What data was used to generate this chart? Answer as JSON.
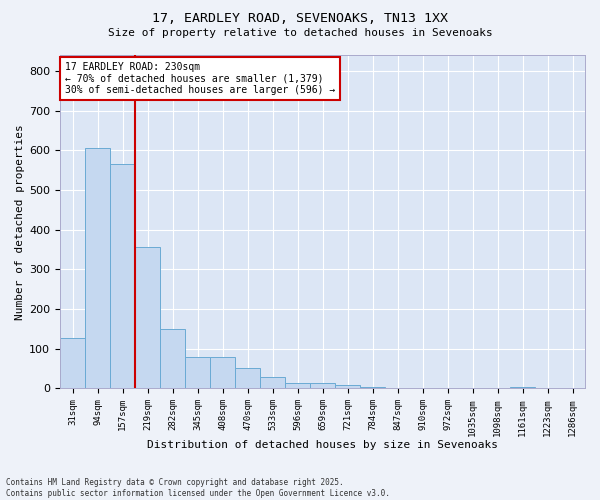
{
  "title_line1": "17, EARDLEY ROAD, SEVENOAKS, TN13 1XX",
  "title_line2": "Size of property relative to detached houses in Sevenoaks",
  "xlabel": "Distribution of detached houses by size in Sevenoaks",
  "ylabel": "Number of detached properties",
  "categories": [
    "31sqm",
    "94sqm",
    "157sqm",
    "219sqm",
    "282sqm",
    "345sqm",
    "408sqm",
    "470sqm",
    "533sqm",
    "596sqm",
    "659sqm",
    "721sqm",
    "784sqm",
    "847sqm",
    "910sqm",
    "972sqm",
    "1035sqm",
    "1098sqm",
    "1161sqm",
    "1223sqm",
    "1286sqm"
  ],
  "values": [
    128,
    607,
    566,
    356,
    150,
    79,
    79,
    52,
    30,
    13,
    13,
    10,
    5,
    0,
    0,
    0,
    0,
    0,
    5,
    0,
    0
  ],
  "bar_color": "#c5d8f0",
  "bar_edge_color": "#6aaad4",
  "fig_bg_color": "#eef2f9",
  "ax_bg_color": "#dce6f5",
  "vline_color": "#cc0000",
  "vline_x_index": 2.5,
  "annotation_text": "17 EARDLEY ROAD: 230sqm\n← 70% of detached houses are smaller (1,379)\n30% of semi-detached houses are larger (596) →",
  "annotation_box_color": "#cc0000",
  "ylim": [
    0,
    840
  ],
  "yticks": [
    0,
    100,
    200,
    300,
    400,
    500,
    600,
    700,
    800
  ],
  "footnote": "Contains HM Land Registry data © Crown copyright and database right 2025.\nContains public sector information licensed under the Open Government Licence v3.0."
}
